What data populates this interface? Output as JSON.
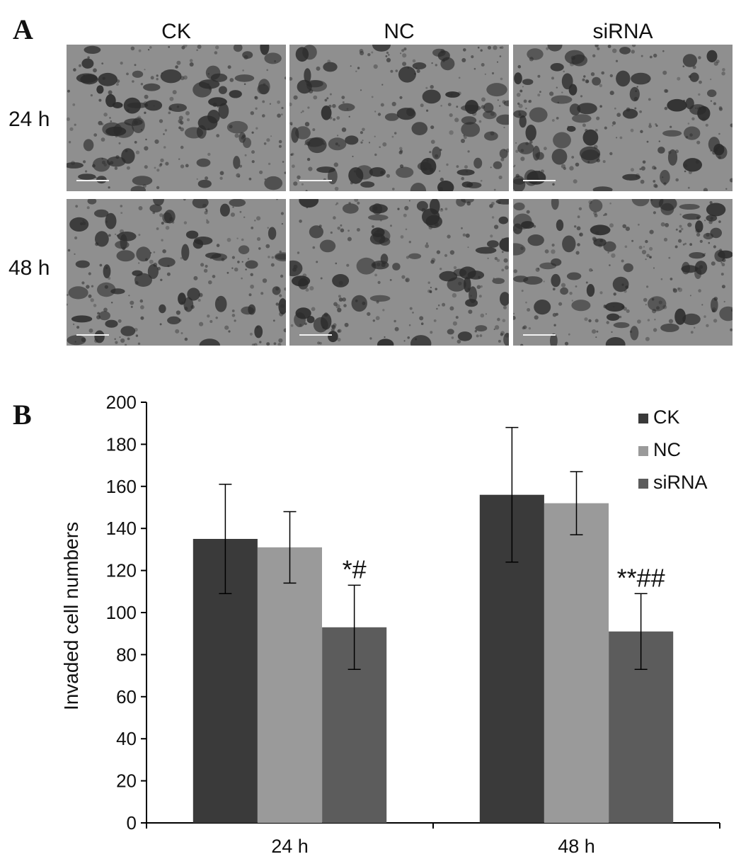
{
  "panel_a": {
    "letter": "A",
    "columns": [
      "CK",
      "NC",
      "siRNA"
    ],
    "rows": [
      "24 h",
      "48 h"
    ]
  },
  "panel_b": {
    "letter": "B"
  },
  "chart_data": {
    "type": "bar",
    "title": "",
    "xlabel": "",
    "ylabel": "Invaded cell numbers",
    "ylim": [
      0,
      200
    ],
    "yticks": [
      0,
      20,
      40,
      60,
      80,
      100,
      120,
      140,
      160,
      180,
      200
    ],
    "categories": [
      "24 h",
      "48 h"
    ],
    "legend_position": "top-right",
    "series": [
      {
        "name": "CK",
        "color": "#3a3a3a",
        "values": [
          135,
          156
        ],
        "errors": [
          26,
          32
        ]
      },
      {
        "name": "NC",
        "color": "#9a9a9a",
        "values": [
          131,
          152
        ],
        "errors": [
          17,
          15
        ]
      },
      {
        "name": "siRNA",
        "color": "#5c5c5c",
        "values": [
          93,
          91
        ],
        "errors": [
          20,
          18
        ]
      }
    ],
    "annotations": [
      {
        "category": "24 h",
        "series": "siRNA",
        "text": "*#"
      },
      {
        "category": "48 h",
        "series": "siRNA",
        "text": "**##"
      }
    ]
  }
}
